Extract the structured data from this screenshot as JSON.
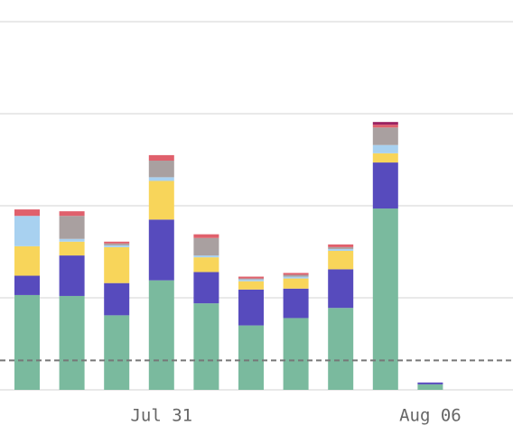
{
  "chart_data": {
    "type": "stacked_bar",
    "categories": [
      null,
      null,
      null,
      "Jul 31",
      null,
      null,
      null,
      null,
      null,
      "Aug 06"
    ],
    "series": [
      {
        "color": "#7aba9e",
        "values": [
          103,
          102,
          81,
          119,
          94,
          70,
          78,
          89,
          197,
          6
        ]
      },
      {
        "color": "#574bbd",
        "values": [
          21,
          44,
          35,
          66,
          34,
          39,
          32,
          42,
          50,
          2
        ]
      },
      {
        "color": "#f8d55a",
        "values": [
          32,
          15,
          39,
          42,
          16,
          9,
          11,
          20,
          10,
          0
        ]
      },
      {
        "color": "#a8d1f0",
        "values": [
          33,
          3,
          2,
          4,
          2,
          2,
          2,
          2,
          9,
          0
        ]
      },
      {
        "color": "#a9a0a0",
        "values": [
          0,
          25,
          2,
          18,
          19,
          1,
          2,
          2,
          19,
          0
        ]
      },
      {
        "color": "#e0606c",
        "values": [
          7,
          5,
          2,
          6,
          4,
          2,
          2,
          3,
          3,
          0
        ]
      },
      {
        "color": "#9b2260",
        "values": [
          0,
          0,
          0,
          0,
          0,
          0,
          0,
          0,
          3,
          0
        ]
      }
    ],
    "ylim": [
      0,
      400
    ],
    "yticks": [
      0,
      100,
      200,
      300,
      400
    ],
    "grid": true,
    "reference_line": 32
  }
}
